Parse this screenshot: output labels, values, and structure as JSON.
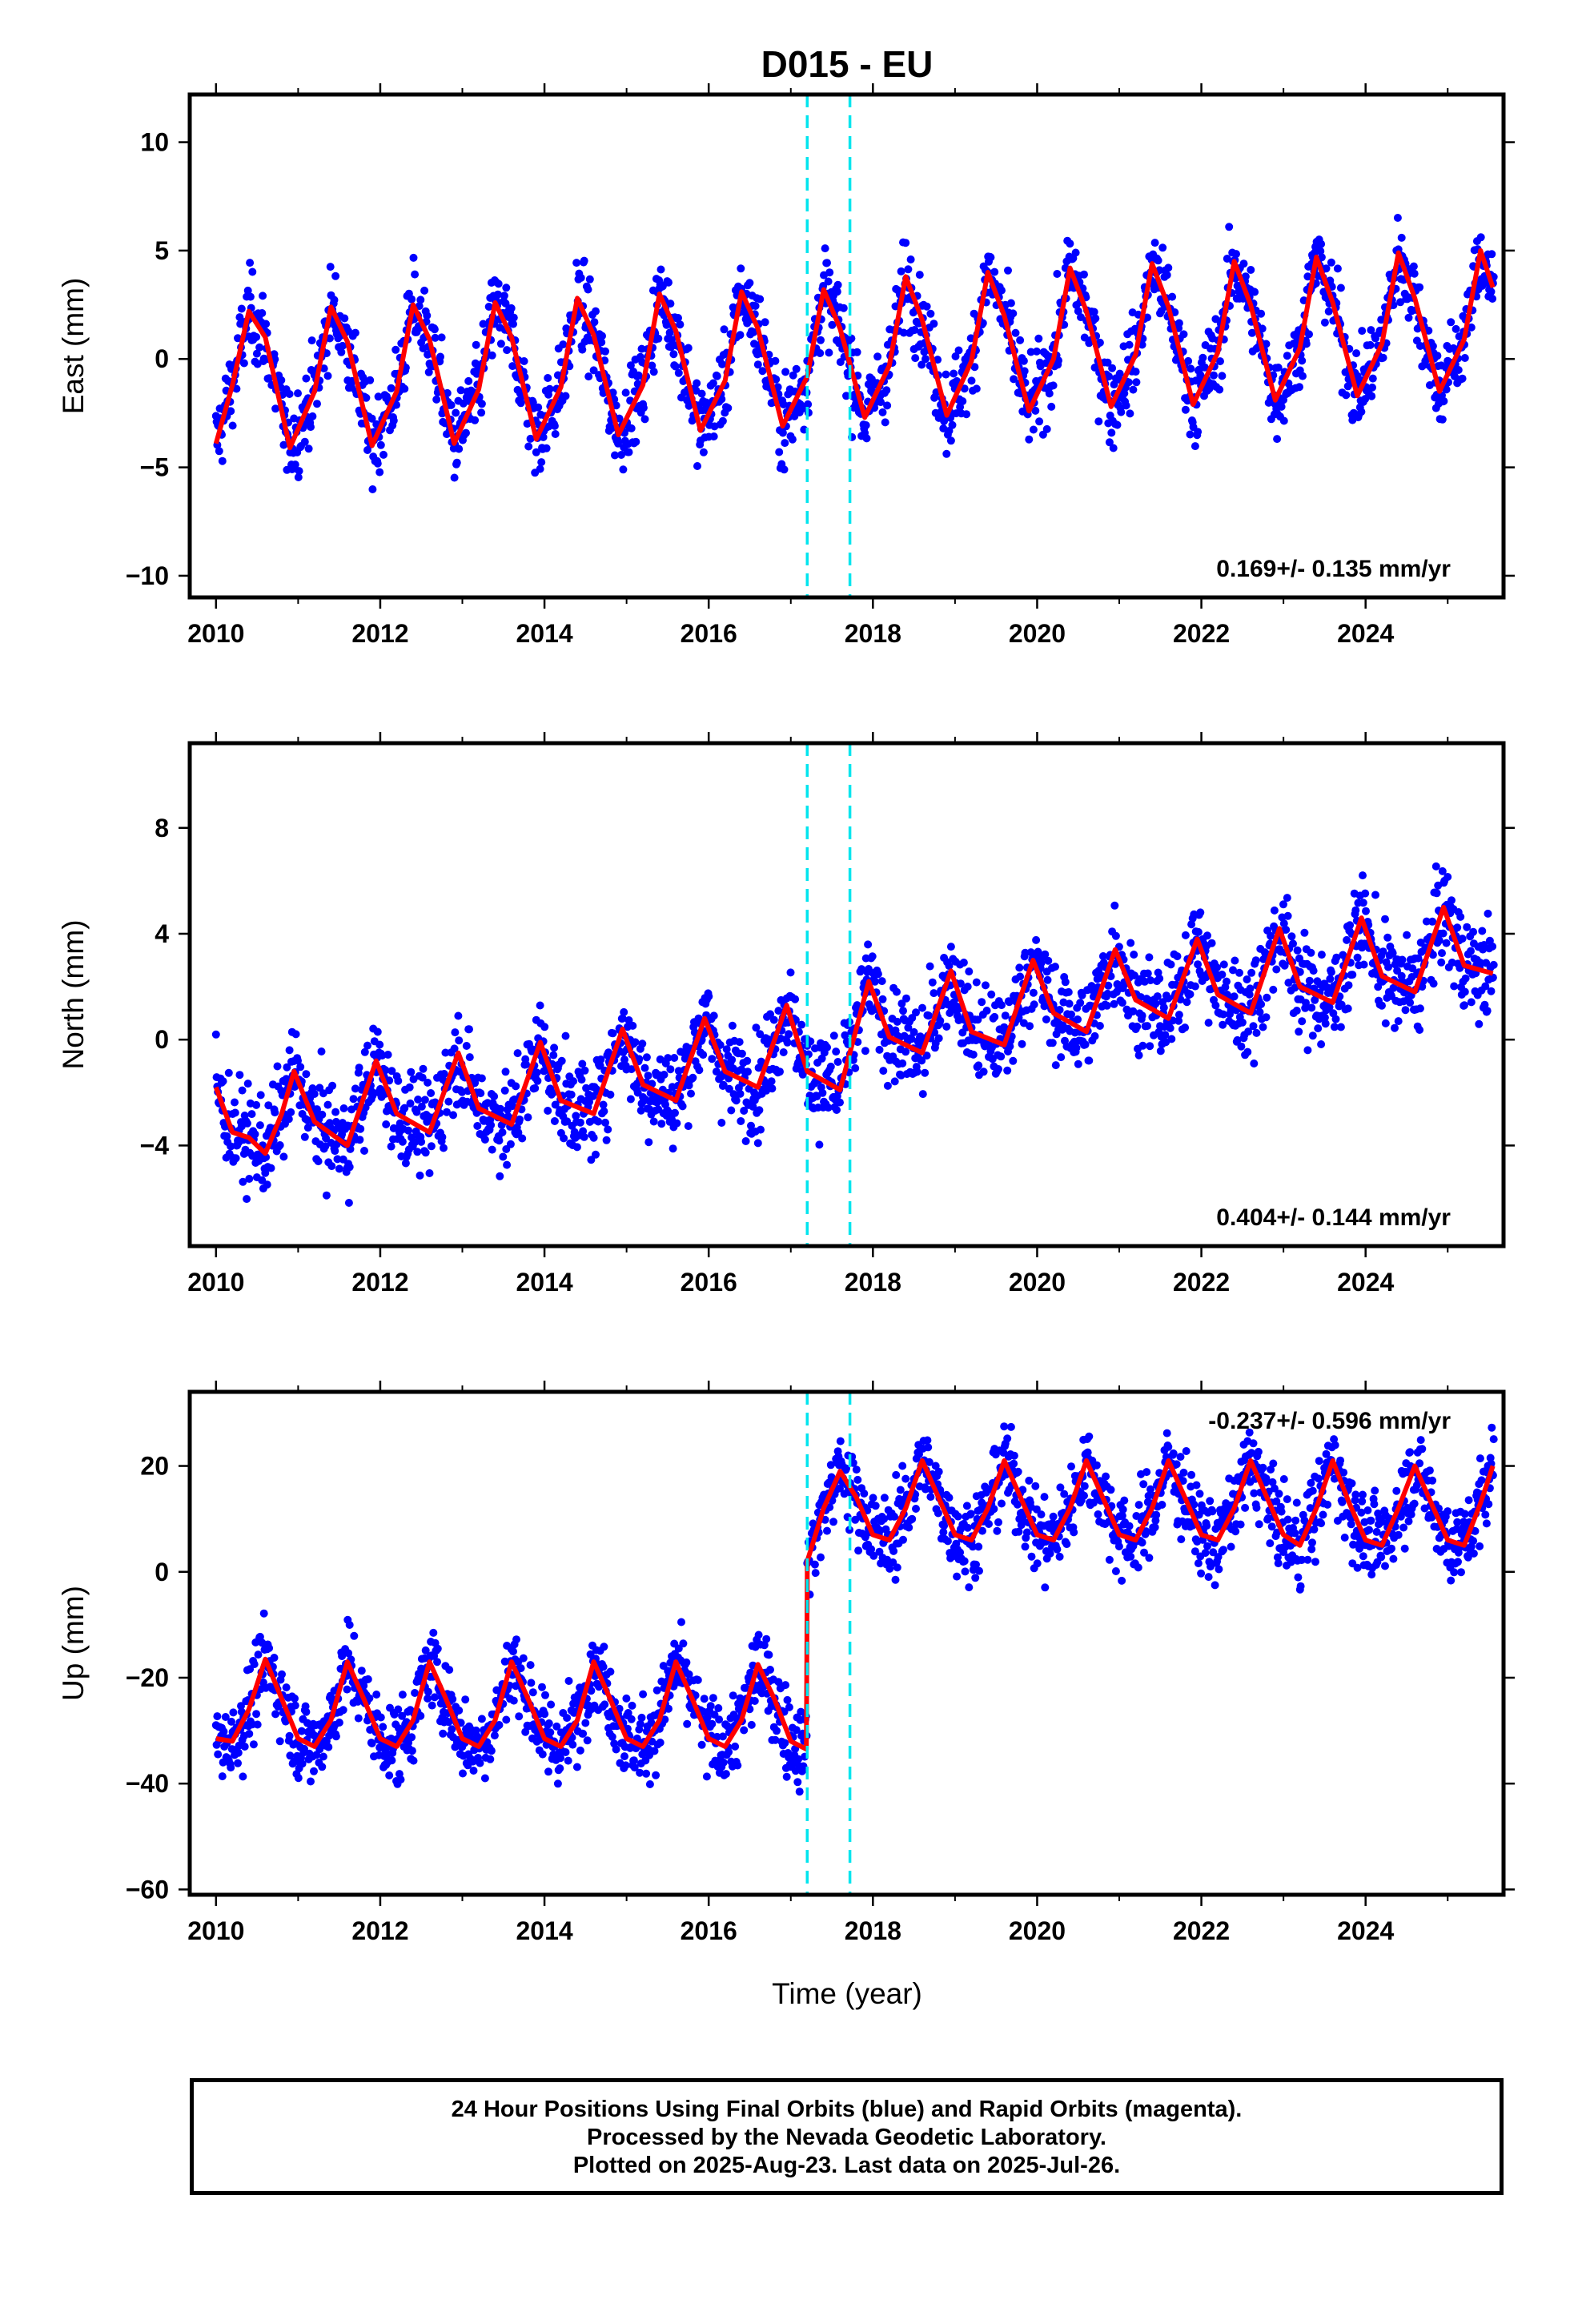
{
  "chart_data": {
    "title": "D015 - EU",
    "type": "scatter",
    "xlabel": "Time (year)",
    "x_ticks": [
      2010,
      2012,
      2014,
      2016,
      2018,
      2020,
      2022,
      2024
    ],
    "xlim": [
      2009.68,
      2025.68
    ],
    "vertical_markers": [
      2017.2,
      2017.72
    ],
    "colors": {
      "points": "#0000ff",
      "fit": "#ff0000",
      "markers": "#00e5ee"
    },
    "panels": [
      {
        "ylabel": "East (mm)",
        "ylim": [
          -11,
          12.2
        ],
        "y_ticks": [
          10,
          5,
          0,
          -5,
          -10
        ],
        "y_tick_labels": [
          "10",
          "5",
          "0",
          "−5",
          "−10"
        ],
        "rate_label": "0.169+/- 0.135 mm/yr",
        "rate_position": "bottom-right",
        "fit": [
          [
            2010.0,
            -3.9
          ],
          [
            2010.2,
            -1.2
          ],
          [
            2010.4,
            2.2
          ],
          [
            2010.6,
            1.0
          ],
          [
            2010.9,
            -4.1
          ],
          [
            2011.2,
            -1.5
          ],
          [
            2011.4,
            2.4
          ],
          [
            2011.6,
            0.8
          ],
          [
            2011.9,
            -4.0
          ],
          [
            2012.2,
            -1.5
          ],
          [
            2012.4,
            2.5
          ],
          [
            2012.6,
            0.9
          ],
          [
            2012.9,
            -3.9
          ],
          [
            2013.2,
            -1.4
          ],
          [
            2013.4,
            2.6
          ],
          [
            2013.6,
            1.0
          ],
          [
            2013.9,
            -3.7
          ],
          [
            2014.2,
            -1.3
          ],
          [
            2014.4,
            2.8
          ],
          [
            2014.6,
            1.1
          ],
          [
            2014.9,
            -3.5
          ],
          [
            2015.2,
            -1.2
          ],
          [
            2015.4,
            3.0
          ],
          [
            2015.6,
            1.3
          ],
          [
            2015.9,
            -3.3
          ],
          [
            2016.2,
            -1.0
          ],
          [
            2016.4,
            3.1
          ],
          [
            2016.6,
            1.4
          ],
          [
            2016.9,
            -3.1
          ],
          [
            2017.2,
            -0.8
          ],
          [
            2017.4,
            3.2
          ],
          [
            2017.6,
            1.4
          ],
          [
            2017.9,
            -2.7
          ],
          [
            2018.2,
            -0.3
          ],
          [
            2018.4,
            3.8
          ],
          [
            2018.6,
            1.8
          ],
          [
            2018.9,
            -2.6
          ],
          [
            2019.2,
            -0.1
          ],
          [
            2019.4,
            4.0
          ],
          [
            2019.6,
            2.0
          ],
          [
            2019.9,
            -2.4
          ],
          [
            2020.2,
            0.0
          ],
          [
            2020.4,
            4.2
          ],
          [
            2020.6,
            2.2
          ],
          [
            2020.9,
            -2.2
          ],
          [
            2021.2,
            0.2
          ],
          [
            2021.4,
            4.4
          ],
          [
            2021.6,
            2.4
          ],
          [
            2021.9,
            -2.1
          ],
          [
            2022.2,
            0.3
          ],
          [
            2022.4,
            4.5
          ],
          [
            2022.6,
            2.5
          ],
          [
            2022.9,
            -1.9
          ],
          [
            2023.2,
            0.5
          ],
          [
            2023.4,
            4.7
          ],
          [
            2023.6,
            2.6
          ],
          [
            2023.9,
            -1.7
          ],
          [
            2024.2,
            0.7
          ],
          [
            2024.4,
            4.9
          ],
          [
            2024.6,
            2.8
          ],
          [
            2024.9,
            -1.5
          ],
          [
            2025.2,
            0.9
          ],
          [
            2025.4,
            5.0
          ],
          [
            2025.55,
            3.3
          ]
        ]
      },
      {
        "ylabel": "North (mm)",
        "ylim": [
          -7.8,
          11.2
        ],
        "y_ticks": [
          8,
          4,
          0,
          -4
        ],
        "y_tick_labels": [
          "8",
          "4",
          "0",
          "−4"
        ],
        "rate_label": "0.404+/- 0.144 mm/yr",
        "rate_position": "bottom-right",
        "fit": [
          [
            2010.0,
            -1.8
          ],
          [
            2010.2,
            -3.5
          ],
          [
            2010.4,
            -3.7
          ],
          [
            2010.6,
            -4.3
          ],
          [
            2010.8,
            -2.8
          ],
          [
            2010.95,
            -1.2
          ],
          [
            2011.2,
            -3.1
          ],
          [
            2011.6,
            -4.0
          ],
          [
            2011.95,
            -0.8
          ],
          [
            2012.2,
            -2.8
          ],
          [
            2012.6,
            -3.5
          ],
          [
            2012.95,
            -0.5
          ],
          [
            2013.2,
            -2.6
          ],
          [
            2013.6,
            -3.2
          ],
          [
            2013.95,
            -0.1
          ],
          [
            2014.2,
            -2.3
          ],
          [
            2014.6,
            -2.8
          ],
          [
            2014.95,
            0.4
          ],
          [
            2015.2,
            -1.7
          ],
          [
            2015.6,
            -2.3
          ],
          [
            2015.95,
            0.8
          ],
          [
            2016.2,
            -1.2
          ],
          [
            2016.6,
            -1.8
          ],
          [
            2016.95,
            1.3
          ],
          [
            2017.2,
            -1.2
          ],
          [
            2017.6,
            -1.9
          ],
          [
            2017.95,
            2.2
          ],
          [
            2018.2,
            0.1
          ],
          [
            2018.6,
            -0.5
          ],
          [
            2018.95,
            2.6
          ],
          [
            2019.2,
            0.3
          ],
          [
            2019.6,
            -0.2
          ],
          [
            2019.95,
            3.0
          ],
          [
            2020.2,
            1.0
          ],
          [
            2020.6,
            0.3
          ],
          [
            2020.95,
            3.4
          ],
          [
            2021.2,
            1.5
          ],
          [
            2021.6,
            0.8
          ],
          [
            2021.95,
            3.8
          ],
          [
            2022.2,
            1.7
          ],
          [
            2022.6,
            1.0
          ],
          [
            2022.95,
            4.2
          ],
          [
            2023.2,
            2.0
          ],
          [
            2023.6,
            1.4
          ],
          [
            2023.95,
            4.6
          ],
          [
            2024.2,
            2.4
          ],
          [
            2024.6,
            1.8
          ],
          [
            2024.95,
            5.0
          ],
          [
            2025.2,
            2.8
          ],
          [
            2025.55,
            2.5
          ]
        ]
      },
      {
        "ylabel": "Up (mm)",
        "ylim": [
          -61,
          34
        ],
        "y_ticks": [
          20,
          0,
          -20,
          -40,
          -60
        ],
        "y_tick_labels": [
          "20",
          "0",
          "−20",
          "−40",
          "−60"
        ],
        "rate_label": "-0.237+/- 0.596 mm/yr",
        "rate_position": "top-right",
        "offset_epoch": 2017.2,
        "fit": [
          [
            2010.0,
            -31.5
          ],
          [
            2010.2,
            -32
          ],
          [
            2010.4,
            -26
          ],
          [
            2010.6,
            -16.5
          ],
          [
            2010.8,
            -24
          ],
          [
            2011.0,
            -31.5
          ],
          [
            2011.2,
            -33
          ],
          [
            2011.4,
            -28
          ],
          [
            2011.6,
            -17
          ],
          [
            2011.8,
            -24
          ],
          [
            2012.0,
            -31.5
          ],
          [
            2012.2,
            -33
          ],
          [
            2012.4,
            -28
          ],
          [
            2012.6,
            -17
          ],
          [
            2012.8,
            -24
          ],
          [
            2013.0,
            -31.5
          ],
          [
            2013.2,
            -33
          ],
          [
            2013.4,
            -28
          ],
          [
            2013.6,
            -17
          ],
          [
            2013.8,
            -24
          ],
          [
            2014.0,
            -31.5
          ],
          [
            2014.2,
            -33
          ],
          [
            2014.4,
            -28
          ],
          [
            2014.6,
            -17
          ],
          [
            2014.8,
            -24
          ],
          [
            2015.0,
            -31.5
          ],
          [
            2015.2,
            -33
          ],
          [
            2015.4,
            -28
          ],
          [
            2015.6,
            -17
          ],
          [
            2015.8,
            -24
          ],
          [
            2016.0,
            -31.5
          ],
          [
            2016.2,
            -33
          ],
          [
            2016.4,
            -28
          ],
          [
            2016.6,
            -17.5
          ],
          [
            2016.8,
            -24
          ],
          [
            2017.0,
            -32
          ],
          [
            2017.19,
            -33.5
          ],
          [
            2017.2,
            0
          ],
          [
            2017.2,
            2
          ],
          [
            2017.4,
            12
          ],
          [
            2017.6,
            19
          ],
          [
            2017.8,
            14
          ],
          [
            2018.0,
            7
          ],
          [
            2018.2,
            6
          ],
          [
            2018.4,
            12
          ],
          [
            2018.6,
            21
          ],
          [
            2018.8,
            14
          ],
          [
            2019.0,
            7
          ],
          [
            2019.2,
            6
          ],
          [
            2019.4,
            12
          ],
          [
            2019.6,
            21
          ],
          [
            2019.8,
            14
          ],
          [
            2020.0,
            7
          ],
          [
            2020.2,
            6
          ],
          [
            2020.4,
            12
          ],
          [
            2020.6,
            21
          ],
          [
            2020.8,
            14
          ],
          [
            2021.0,
            7
          ],
          [
            2021.2,
            6
          ],
          [
            2021.4,
            12
          ],
          [
            2021.6,
            21
          ],
          [
            2021.8,
            14
          ],
          [
            2022.0,
            7
          ],
          [
            2022.2,
            6
          ],
          [
            2022.4,
            12
          ],
          [
            2022.6,
            21
          ],
          [
            2022.8,
            14
          ],
          [
            2023.0,
            7
          ],
          [
            2023.2,
            5
          ],
          [
            2023.4,
            12
          ],
          [
            2023.6,
            21
          ],
          [
            2023.8,
            13
          ],
          [
            2024.0,
            6
          ],
          [
            2024.2,
            5
          ],
          [
            2024.4,
            12
          ],
          [
            2024.6,
            20
          ],
          [
            2024.8,
            13
          ],
          [
            2025.0,
            6
          ],
          [
            2025.2,
            5
          ],
          [
            2025.4,
            13
          ],
          [
            2025.55,
            20
          ]
        ]
      }
    ]
  },
  "footer": {
    "line1": "24 Hour Positions Using Final Orbits (blue) and Rapid Orbits (magenta).",
    "line2": "Processed by the Nevada Geodetic Laboratory.",
    "line3": "Plotted on 2025-Aug-23. Last data on 2025-Jul-26."
  }
}
